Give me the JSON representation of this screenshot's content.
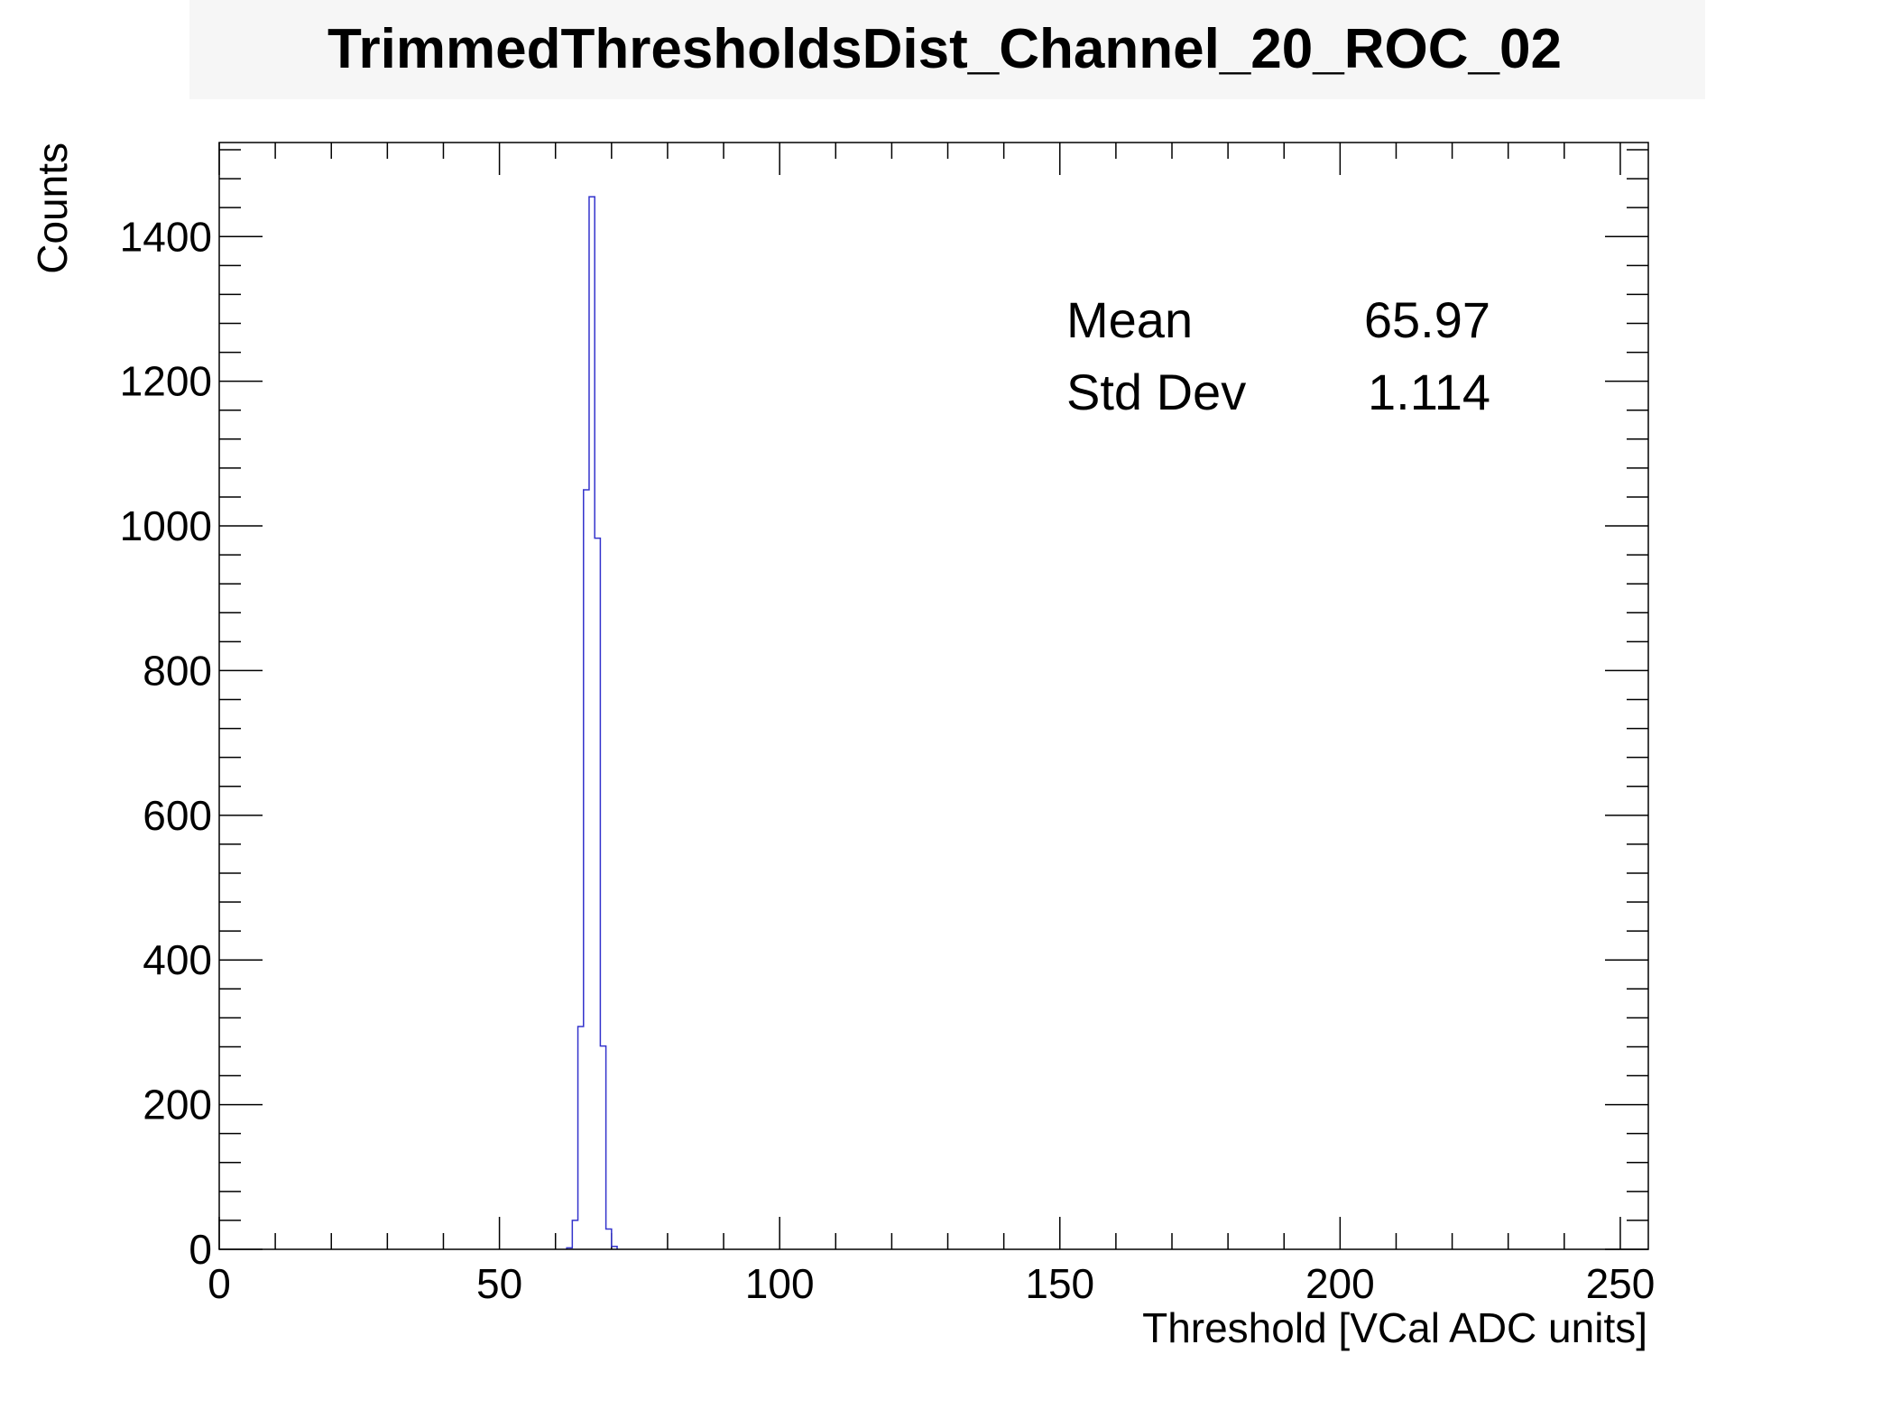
{
  "chart_data": {
    "type": "bar",
    "title": "TrimmedThresholdsDist_Channel_20_ROC_02",
    "xlabel": "Threshold [VCal ADC units]",
    "ylabel": "Counts",
    "xlim": [
      0,
      255
    ],
    "ylim": [
      0,
      1530
    ],
    "x_ticks": [
      0,
      50,
      100,
      150,
      200,
      250
    ],
    "y_ticks": [
      0,
      200,
      400,
      600,
      800,
      1000,
      1200,
      1400
    ],
    "bin_width": 1,
    "line_color": "#3333cc",
    "grid": false,
    "legend": "none",
    "stats": [
      {
        "label": "Mean",
        "value": "65.97"
      },
      {
        "label": "Std Dev",
        "value": "1.114"
      }
    ],
    "bins": [
      {
        "x": 62,
        "count": 2
      },
      {
        "x": 63,
        "count": 40
      },
      {
        "x": 64,
        "count": 308
      },
      {
        "x": 65,
        "count": 1050
      },
      {
        "x": 66,
        "count": 1455
      },
      {
        "x": 67,
        "count": 983
      },
      {
        "x": 68,
        "count": 281
      },
      {
        "x": 69,
        "count": 28
      },
      {
        "x": 70,
        "count": 4
      }
    ]
  }
}
